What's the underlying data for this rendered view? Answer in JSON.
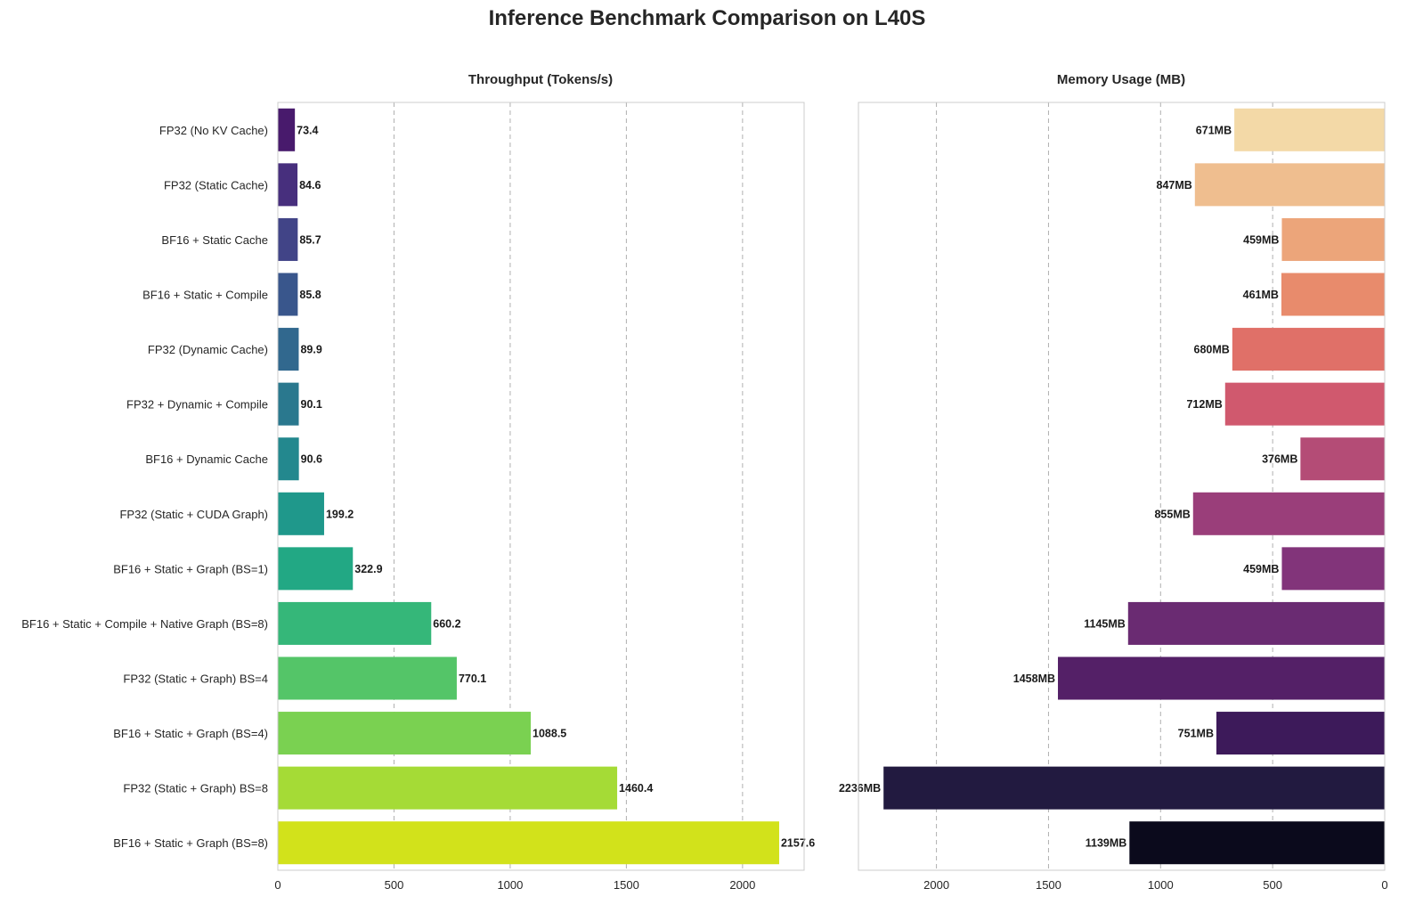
{
  "title": "Inference Benchmark Comparison on L40S",
  "chart_data": [
    {
      "type": "bar",
      "orientation": "horizontal",
      "title": "Throughput (Tokens/s)",
      "xlabel": "",
      "ylabel": "",
      "categories": [
        "FP32 (No KV Cache)",
        "FP32 (Static Cache)",
        "BF16 + Static Cache",
        "BF16 + Static + Compile",
        "FP32 (Dynamic Cache)",
        "FP32 + Dynamic + Compile",
        "BF16 + Dynamic Cache",
        "FP32 (Static + CUDA Graph)",
        "BF16 + Static + Graph (BS=1)",
        "BF16 + Static + Compile + Native Graph (BS=8)",
        "FP32 (Static + Graph) BS=4",
        "BF16 + Static + Graph (BS=4)",
        "FP32 (Static + Graph) BS=8",
        "BF16 + Static + Graph (BS=8)"
      ],
      "values": [
        73.4,
        84.6,
        85.7,
        85.8,
        89.9,
        90.1,
        90.6,
        199.2,
        322.9,
        660.2,
        770.1,
        1088.5,
        1460.4,
        2157.6
      ],
      "value_labels": [
        "73.4",
        "84.6",
        "85.7",
        "85.8",
        "89.9",
        "90.1",
        "90.6",
        "199.2",
        "322.9",
        "660.2",
        "770.1",
        "1088.5",
        "1460.4",
        "2157.6"
      ],
      "xlim": [
        0,
        2265
      ],
      "xticks": [
        0,
        500,
        1000,
        1500,
        2000
      ],
      "xtick_labels": [
        "0",
        "500",
        "1000",
        "1500",
        "2000"
      ],
      "grid": "x-dashed",
      "colors": [
        "#481a6c",
        "#472f7d",
        "#414487",
        "#39568c",
        "#31688e",
        "#2a788e",
        "#23888e",
        "#1f988b",
        "#22a884",
        "#35b779",
        "#54c568",
        "#7ad151",
        "#a5db36",
        "#d2e21b"
      ]
    },
    {
      "type": "bar",
      "orientation": "horizontal",
      "title": "Memory Usage (MB)",
      "xlabel": "",
      "ylabel": "",
      "x_inverted": true,
      "values": [
        671,
        847,
        459,
        461,
        680,
        712,
        376,
        855,
        459,
        1145,
        1458,
        751,
        2236,
        1139
      ],
      "value_labels": [
        "671MB",
        "847MB",
        "459MB",
        "461MB",
        "680MB",
        "712MB",
        "376MB",
        "855MB",
        "459MB",
        "1145MB",
        "1458MB",
        "751MB",
        "2236MB",
        "1139MB"
      ],
      "xlim": [
        2348,
        0
      ],
      "xticks": [
        2000,
        1500,
        1000,
        500,
        0
      ],
      "xtick_labels": [
        "2000",
        "1500",
        "1000",
        "500",
        "0"
      ],
      "grid": "x-dashed",
      "colors": [
        "#f3d9a7",
        "#efbe8f",
        "#eca57a",
        "#e88b6c",
        "#e07068",
        "#d0596e",
        "#b44c76",
        "#9a3e7a",
        "#82347a",
        "#6a2b72",
        "#542067",
        "#3d1a5a",
        "#221a40",
        "#0b0a1c"
      ]
    }
  ]
}
